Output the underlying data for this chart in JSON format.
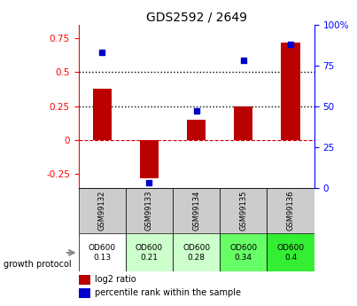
{
  "title": "GDS2592 / 2649",
  "samples": [
    "GSM99132",
    "GSM99133",
    "GSM99134",
    "GSM99135",
    "GSM99136"
  ],
  "log2_ratio": [
    0.38,
    -0.28,
    0.15,
    0.25,
    0.72
  ],
  "percentile_rank": [
    83,
    3,
    47,
    78,
    88
  ],
  "bar_color": "#bb0000",
  "dot_color": "#0000cc",
  "ylim_left": [
    -0.35,
    0.85
  ],
  "ylim_right": [
    0,
    100
  ],
  "yticks_left": [
    -0.25,
    0,
    0.25,
    0.5,
    0.75
  ],
  "yticks_right": [
    0,
    25,
    50,
    75,
    100
  ],
  "hlines": [
    0.5,
    0.25
  ],
  "protocol_labels": [
    "OD600\n0.13",
    "OD600\n0.21",
    "OD600\n0.28",
    "OD600\n0.34",
    "OD600\n0.4"
  ],
  "protocol_bg_colors": [
    "#ffffff",
    "#ccffcc",
    "#ccffcc",
    "#66ff66",
    "#33ee33"
  ],
  "sample_bg_color": "#cccccc",
  "zero_line_color": "#cc0000",
  "dotted_line_color": "#000000",
  "title_fontsize": 10,
  "tick_fontsize": 7.5,
  "bar_width": 0.4
}
